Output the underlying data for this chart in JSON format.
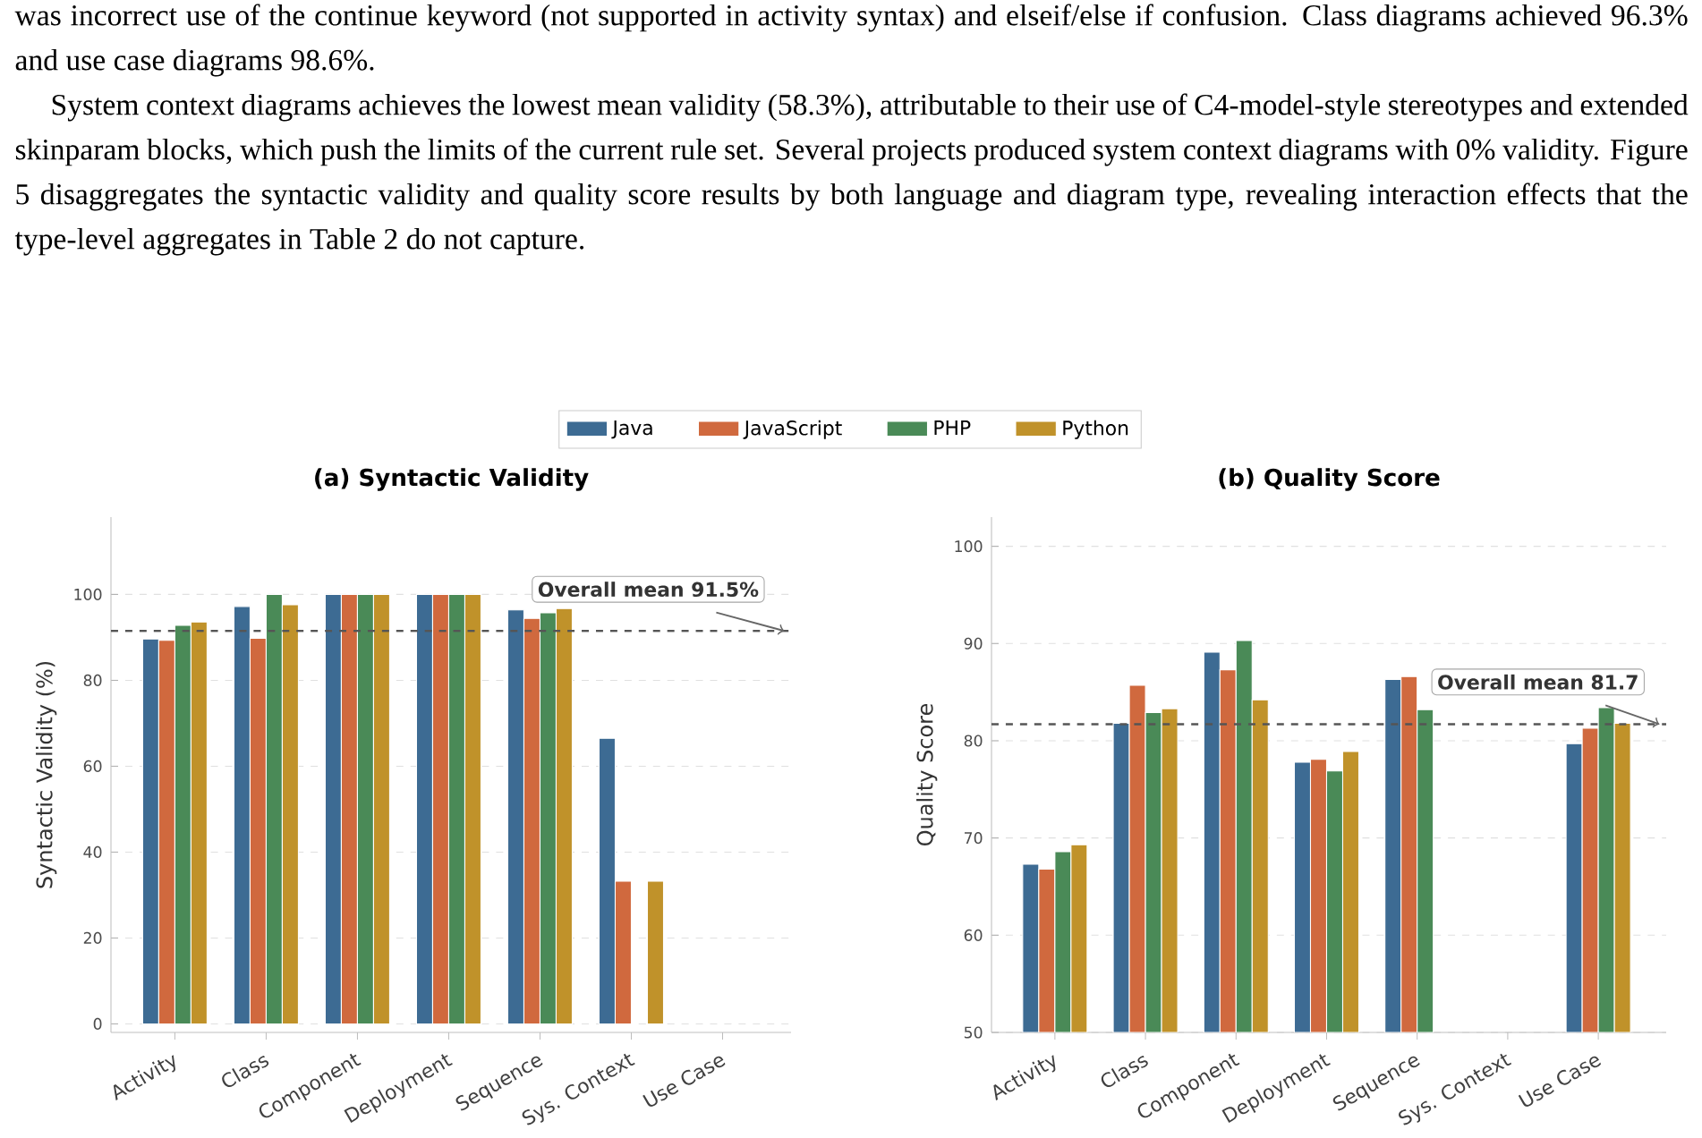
{
  "chart_data": [
    {
      "type": "bar",
      "title": "(a) Syntactic Validity",
      "ylabel": "Syntactic Validity (%)",
      "annotations": [
        "was incorrect use of the continue keyword (not supported in activity syntax) and elseif/else if confusion. Class diagrams achieved 96.3% and use case diagrams 98.6%.",
        "System context diagrams achieves the lowest mean validity (58.3%), attributable to their use of C4-model-style stereotypes and extended skinparam blocks, which push the limits of the current rule set. Several projects produced system context diagrams with 0% validity. Figure 5 disaggregates the syntactic validity and quality score results by both language and diagram type, revealing interaction effects that the type-level aggregates in Table 2 do not capture."
      ],
      "categories": [
        "Activity",
        "Class",
        "Component",
        "Deployment",
        "Sequence",
        "Sys. Context",
        "Use Case"
      ],
      "series": [
        {
          "name": "Java",
          "color": "#3d6b93",
          "values": [
            89.6,
            97.2,
            100,
            100,
            96.4,
            66.5,
            null
          ]
        },
        {
          "name": "JavaScript",
          "color": "#d0693e",
          "values": [
            89.3,
            89.8,
            100,
            100,
            94.4,
            33.2,
            null
          ]
        },
        {
          "name": "PHP",
          "color": "#4a8a57",
          "values": [
            92.8,
            100,
            100,
            100,
            95.7,
            null,
            null
          ]
        },
        {
          "name": "Python",
          "color": "#c0922a",
          "values": [
            93.6,
            97.6,
            100,
            100,
            96.7,
            33.2,
            null
          ]
        }
      ],
      "ylim": [
        -2,
        118
      ],
      "yticks": [
        0,
        20,
        40,
        60,
        80,
        100
      ],
      "grid": "y",
      "legend": "top",
      "ref_lines": [
        {
          "axis": "y",
          "value": 91.5,
          "label": "Overall mean 91.5%",
          "color": "#555555",
          "line_style": "dashed"
        }
      ]
    },
    {
      "type": "bar",
      "title": "(b) Quality Score",
      "ylabel": "Quality Score",
      "categories": [
        "Activity",
        "Class",
        "Component",
        "Deployment",
        "Sequence",
        "Sys. Context",
        "Use Case"
      ],
      "series": [
        {
          "color": "#3d6b93",
          "values": [
            67.3,
            81.8,
            89.1,
            77.8,
            86.3,
            null,
            79.7
          ]
        },
        {
          "color": "#d0693e",
          "values": [
            66.8,
            85.7,
            87.3,
            78.1,
            86.6,
            null,
            81.3
          ]
        },
        {
          "color": "#4a8a57",
          "values": [
            68.6,
            82.9,
            90.3,
            76.9,
            83.2,
            null,
            83.4
          ]
        },
        {
          "color": "#c0922a",
          "values": [
            69.3,
            83.3,
            84.2,
            78.9,
            null,
            null,
            81.8
          ]
        }
      ],
      "ylim": [
        50,
        103
      ],
      "yticks": [
        50,
        60,
        70,
        80,
        90,
        100
      ],
      "grid": "y",
      "ref_lines": [
        {
          "axis": "y",
          "value": 81.7,
          "label": "Overall mean 81.7",
          "color": "#555555",
          "line_style": "dashed"
        }
      ]
    }
  ]
}
